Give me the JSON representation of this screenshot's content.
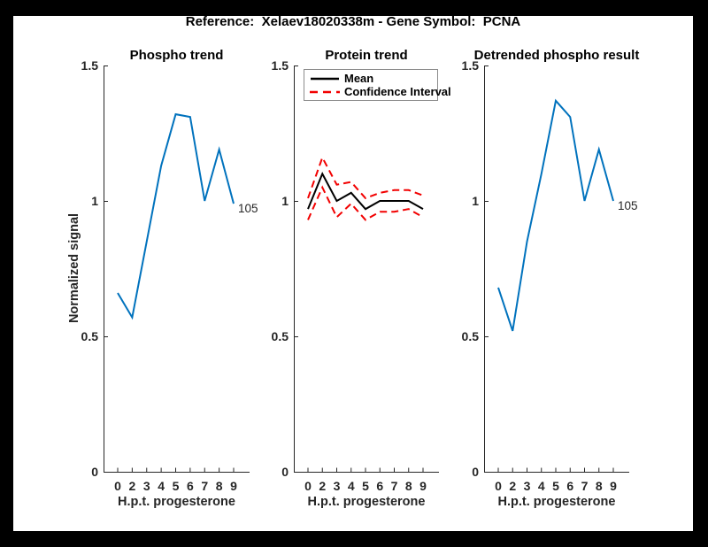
{
  "figure": {
    "title": "Reference:  Xelaev18020338m - Gene Symbol:  PCNA",
    "frame_color": "#000000",
    "canvas_color": "#ffffff"
  },
  "axis": {
    "color": "#262626",
    "title_color": "#000000"
  },
  "annotation_label": "105",
  "chart_data": [
    {
      "type": "line",
      "title": "Phospho trend",
      "xlabel": "H.p.t. progesterone",
      "ylabel": "Normalized signal",
      "x_tick_labels": [
        "0",
        "2",
        "3",
        "4",
        "5",
        "6",
        "7",
        "8",
        "9"
      ],
      "y_ticks": [
        0,
        0.5,
        1,
        1.5
      ],
      "y_tick_labels": [
        "0",
        "0.5",
        "1",
        "1.5"
      ],
      "ylim": [
        0,
        1.5
      ],
      "grid": false,
      "series": [
        {
          "name": "phospho-signal",
          "color": "#0072BD",
          "style": "solid",
          "width": 2,
          "values": [
            0.66,
            0.57,
            0.85,
            1.13,
            1.32,
            1.31,
            1.0,
            1.19,
            0.99
          ]
        }
      ],
      "annotation": {
        "text": "105"
      }
    },
    {
      "type": "line",
      "title": "Protein trend",
      "xlabel": "H.p.t. progesterone",
      "ylabel": "",
      "x_tick_labels": [
        "0",
        "2",
        "3",
        "4",
        "5",
        "6",
        "7",
        "8",
        "9"
      ],
      "y_ticks": [
        0,
        0.5,
        1,
        1.5
      ],
      "y_tick_labels": [
        "0",
        "0.5",
        "1",
        "1.5"
      ],
      "ylim": [
        0,
        1.5
      ],
      "grid": false,
      "series": [
        {
          "name": "mean",
          "color": "#000000",
          "style": "solid",
          "width": 2,
          "values": [
            0.97,
            1.1,
            1.0,
            1.03,
            0.97,
            1.0,
            1.0,
            1.0,
            0.97
          ]
        },
        {
          "name": "confidence-upper",
          "color": "#f20000",
          "style": "dashed",
          "width": 2,
          "values": [
            1.01,
            1.16,
            1.06,
            1.07,
            1.01,
            1.03,
            1.04,
            1.04,
            1.02
          ]
        },
        {
          "name": "confidence-lower",
          "color": "#f20000",
          "style": "dashed",
          "width": 2,
          "values": [
            0.93,
            1.05,
            0.94,
            0.99,
            0.93,
            0.96,
            0.96,
            0.97,
            0.94
          ]
        }
      ],
      "legend": {
        "position": "top-left",
        "entries": [
          {
            "label": "Mean",
            "color": "#000000",
            "style": "solid"
          },
          {
            "label": "Confidence Interval",
            "color": "#f20000",
            "style": "dashed"
          }
        ]
      }
    },
    {
      "type": "line",
      "title": "Detrended phospho result",
      "xlabel": "H.p.t. progesterone",
      "ylabel": "",
      "x_tick_labels": [
        "0",
        "2",
        "3",
        "4",
        "5",
        "6",
        "7",
        "8",
        "9"
      ],
      "y_ticks": [
        0,
        0.5,
        1,
        1.5
      ],
      "y_tick_labels": [
        "0",
        "0.5",
        "1",
        "1.5"
      ],
      "ylim": [
        0,
        1.5
      ],
      "grid": false,
      "series": [
        {
          "name": "detrended-phospho-signal",
          "color": "#0072BD",
          "style": "solid",
          "width": 2,
          "values": [
            0.68,
            0.52,
            0.85,
            1.1,
            1.37,
            1.31,
            1.0,
            1.19,
            1.0
          ]
        }
      ],
      "annotation": {
        "text": "105"
      }
    }
  ]
}
